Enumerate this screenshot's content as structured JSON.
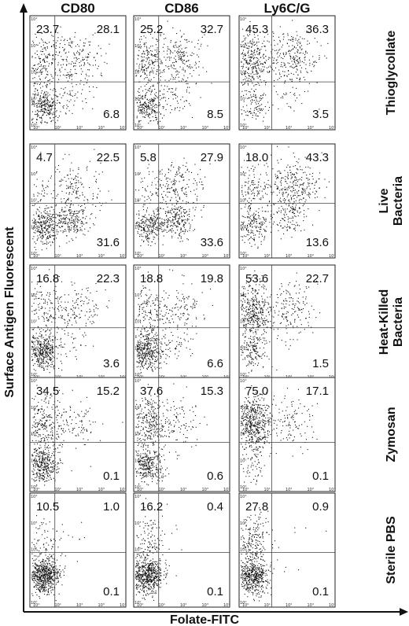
{
  "chart_data": {
    "type": "scatter",
    "xlabel": "Folate-FITC",
    "ylabel": "Surface Antigen Fluorescent",
    "columns": [
      "CD80",
      "CD86",
      "Ly6C/G"
    ],
    "rows": [
      "Thioglycollate",
      "Live Bacteria",
      "Heat-Killed Bacteria",
      "Zymosan",
      "Sterile PBS"
    ],
    "xlim": [
      0,
      10000
    ],
    "ylim": [
      0,
      10000
    ],
    "x_scale": "log",
    "y_scale": "log",
    "tick_labels": [
      "10⁰",
      "10¹",
      "10²",
      "10³",
      "10⁴"
    ],
    "panels": [
      {
        "row": "Thioglycollate",
        "column": "CD80",
        "upper_left": "23.7",
        "upper_right": "28.1",
        "lower_right": "6.8"
      },
      {
        "row": "Thioglycollate",
        "column": "CD86",
        "upper_left": "25.2",
        "upper_right": "32.7",
        "lower_right": "8.5"
      },
      {
        "row": "Thioglycollate",
        "column": "Ly6C/G",
        "upper_left": "45.3",
        "upper_right": "36.3",
        "lower_right": "3.5"
      },
      {
        "row": "Live Bacteria",
        "column": "CD80",
        "upper_left": "4.7",
        "upper_right": "22.5",
        "lower_right": "31.6"
      },
      {
        "row": "Live Bacteria",
        "column": "CD86",
        "upper_left": "5.8",
        "upper_right": "27.9",
        "lower_right": "33.6"
      },
      {
        "row": "Live Bacteria",
        "column": "Ly6C/G",
        "upper_left": "18.0",
        "upper_right": "43.3",
        "lower_right": "13.6"
      },
      {
        "row": "Heat-Killed Bacteria",
        "column": "CD80",
        "upper_left": "16.8",
        "upper_right": "22.3",
        "lower_right": "3.6"
      },
      {
        "row": "Heat-Killed Bacteria",
        "column": "CD86",
        "upper_left": "18.8",
        "upper_right": "19.8",
        "lower_right": "6.6"
      },
      {
        "row": "Heat-Killed Bacteria",
        "column": "Ly6C/G",
        "upper_left": "53.6",
        "upper_right": "22.7",
        "lower_right": "1.5"
      },
      {
        "row": "Zymosan",
        "column": "CD80",
        "upper_left": "34.5",
        "upper_right": "15.2",
        "lower_right": "0.1"
      },
      {
        "row": "Zymosan",
        "column": "CD86",
        "upper_left": "37.6",
        "upper_right": "15.3",
        "lower_right": "0.6"
      },
      {
        "row": "Zymosan",
        "column": "Ly6C/G",
        "upper_left": "75.0",
        "upper_right": "17.1",
        "lower_right": "0.1"
      },
      {
        "row": "Sterile PBS",
        "column": "CD80",
        "upper_left": "10.5",
        "upper_right": "1.0",
        "lower_right": "0.1"
      },
      {
        "row": "Sterile PBS",
        "column": "CD86",
        "upper_left": "16.2",
        "upper_right": "0.4",
        "lower_right": "0.1"
      },
      {
        "row": "Sterile PBS",
        "column": "Ly6C/G",
        "upper_left": "27.8",
        "upper_right": "0.9",
        "lower_right": "0.1"
      }
    ]
  }
}
